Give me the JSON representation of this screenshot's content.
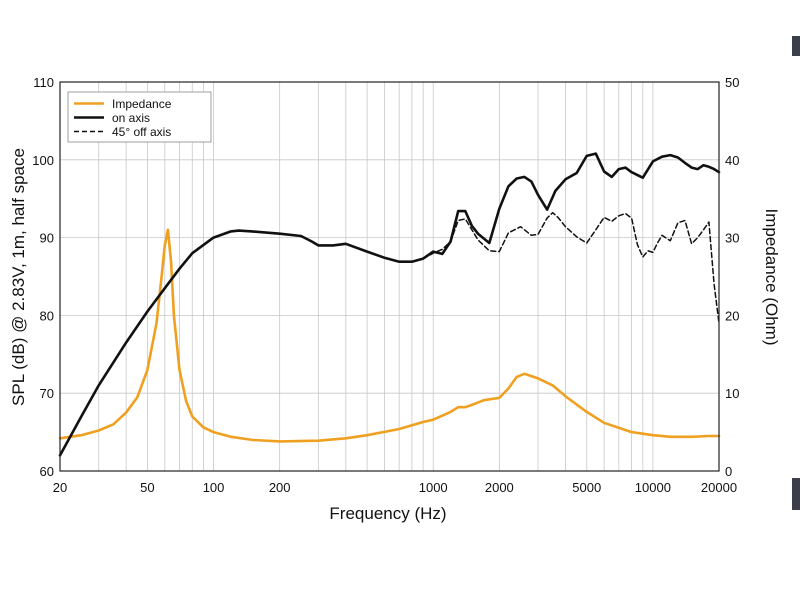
{
  "chart_data": {
    "type": "line",
    "xlabel": "Frequency (Hz)",
    "ylabel": "SPL (dB) @ 2.83V, 1m, half space",
    "y2label": "Impedance (Ohm)",
    "xscale": "log",
    "xlim": [
      20,
      20000
    ],
    "ylim": [
      60,
      110
    ],
    "y2lim": [
      0,
      50
    ],
    "grid": true,
    "legend_position": "top-left",
    "x_ticks": [
      "20",
      "50",
      "100",
      "200",
      "1000",
      "2000",
      "5000",
      "10000",
      "20000"
    ],
    "y_ticks": [
      "60",
      "70",
      "80",
      "90",
      "100",
      "110"
    ],
    "y2_ticks": [
      "0",
      "10",
      "20",
      "30",
      "40",
      "50"
    ],
    "series": [
      {
        "name": "Impedance",
        "axis": "right",
        "color": "#f0a020",
        "style": "solid",
        "x": [
          20,
          25,
          30,
          35,
          40,
          45,
          50,
          55,
          58,
          60,
          62,
          64,
          66,
          70,
          75,
          80,
          90,
          100,
          120,
          150,
          200,
          300,
          400,
          500,
          700,
          900,
          1000,
          1200,
          1300,
          1400,
          1500,
          1700,
          2000,
          2200,
          2400,
          2600,
          2800,
          3000,
          3500,
          4000,
          5000,
          6000,
          8000,
          10000,
          12000,
          15000,
          18000,
          20000
        ],
        "values": [
          4.2,
          4.6,
          5.2,
          6.0,
          7.5,
          9.5,
          13,
          19,
          25,
          29,
          31,
          27,
          20,
          13,
          9,
          7,
          5.6,
          5.0,
          4.4,
          4.0,
          3.8,
          3.9,
          4.2,
          4.6,
          5.4,
          6.3,
          6.6,
          7.6,
          8.2,
          8.2,
          8.5,
          9.1,
          9.4,
          10.6,
          12.1,
          12.5,
          12.2,
          11.9,
          11.0,
          9.6,
          7.6,
          6.2,
          5.0,
          4.6,
          4.4,
          4.4,
          4.5,
          4.5
        ]
      },
      {
        "name": "on axis",
        "axis": "left",
        "color": "#111111",
        "style": "solid",
        "x": [
          20,
          25,
          30,
          40,
          50,
          60,
          70,
          80,
          100,
          120,
          130,
          150,
          200,
          250,
          280,
          300,
          350,
          400,
          500,
          600,
          700,
          800,
          900,
          1000,
          1100,
          1200,
          1300,
          1400,
          1500,
          1600,
          1800,
          2000,
          2200,
          2400,
          2600,
          2800,
          3000,
          3300,
          3600,
          4000,
          4500,
          5000,
          5500,
          6000,
          6500,
          7000,
          7500,
          8000,
          9000,
          10000,
          11000,
          12000,
          13000,
          14000,
          15000,
          16000,
          17000,
          18000,
          19000,
          20000
        ],
        "values": [
          62,
          67,
          71,
          76.5,
          80.5,
          83.5,
          86,
          88,
          90,
          90.8,
          90.9,
          90.8,
          90.5,
          90.2,
          89.5,
          89,
          89,
          89.2,
          88.2,
          87.4,
          86.9,
          86.9,
          87.3,
          88.2,
          87.9,
          89.5,
          93.4,
          93.4,
          91.5,
          90.5,
          89.3,
          93.7,
          96.6,
          97.6,
          97.8,
          97.2,
          95.5,
          93.6,
          96,
          97.5,
          98.3,
          100.5,
          100.8,
          98.5,
          97.8,
          98.8,
          99,
          98.4,
          97.7,
          99.8,
          100.4,
          100.6,
          100.3,
          99.6,
          99,
          98.8,
          99.3,
          99.1,
          98.8,
          98.4
        ]
      },
      {
        "name": "45° off axis",
        "axis": "left",
        "color": "#111111",
        "style": "dashed",
        "x": [
          900,
          1000,
          1100,
          1200,
          1300,
          1400,
          1500,
          1600,
          1800,
          2000,
          2200,
          2500,
          2800,
          3000,
          3300,
          3500,
          3700,
          4000,
          4500,
          5000,
          5500,
          6000,
          6500,
          7000,
          7500,
          8000,
          8500,
          9000,
          9500,
          10000,
          10500,
          11000,
          12000,
          13000,
          14000,
          15000,
          16000,
          17000,
          18000,
          19000,
          20000
        ],
        "values": [
          87.3,
          88.0,
          88.5,
          89.5,
          92.2,
          92.4,
          91.0,
          89.7,
          88.3,
          88.2,
          90.6,
          91.4,
          90.3,
          90.4,
          92.5,
          93.2,
          92.6,
          91.4,
          90.1,
          89.3,
          91.0,
          92.6,
          92.1,
          92.8,
          93.1,
          92.5,
          89.1,
          87.5,
          88.3,
          88.1,
          89.3,
          90.3,
          89.6,
          91.9,
          92.2,
          89.2,
          90.0,
          91.0,
          92.0,
          84.0,
          79.0
        ]
      }
    ]
  }
}
